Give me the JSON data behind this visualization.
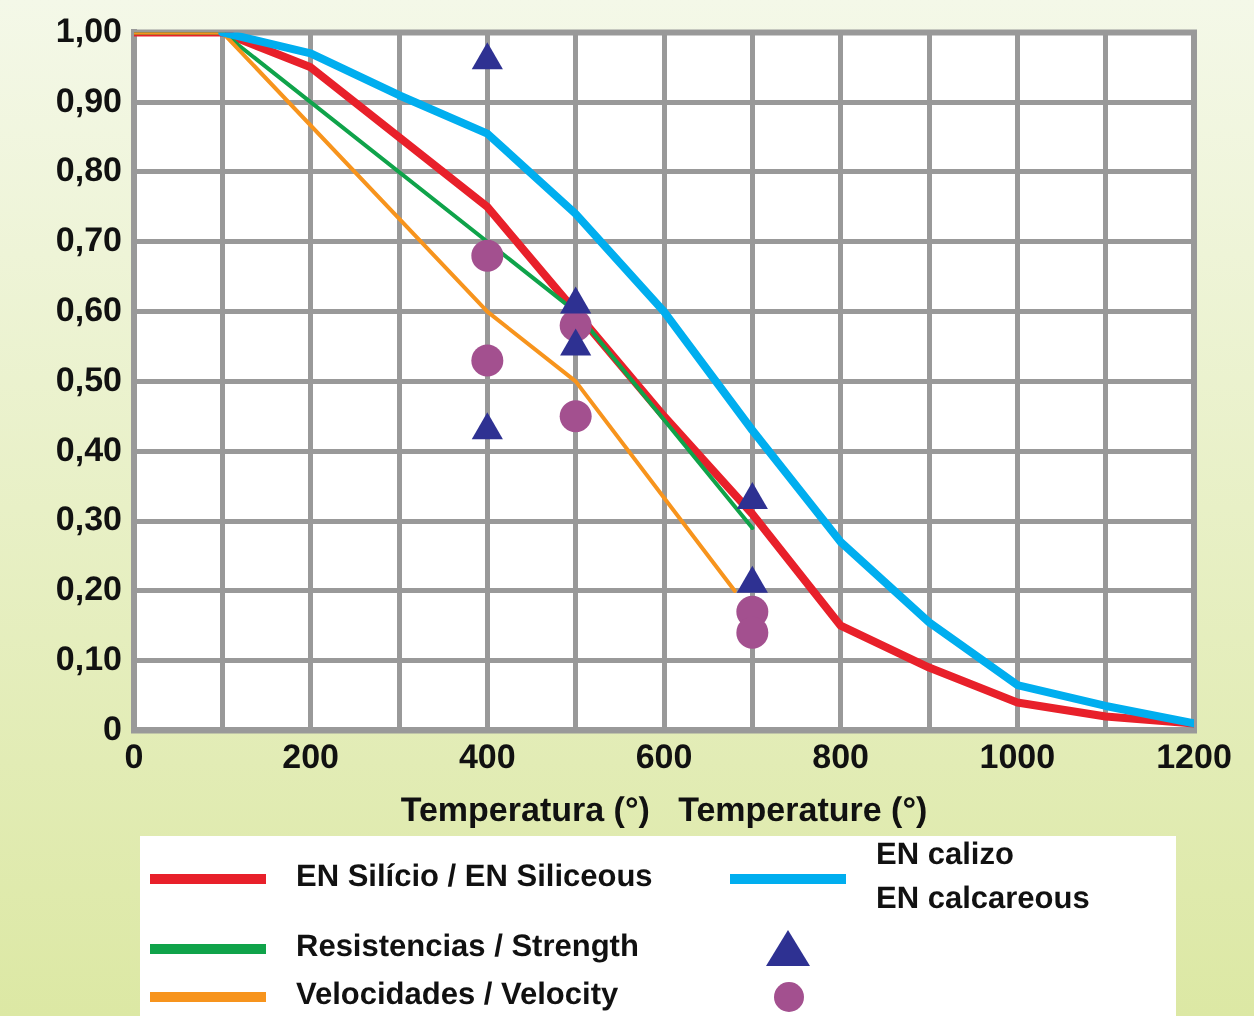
{
  "chart_data": {
    "type": "line",
    "xlabel": "Temperatura (°)   Temperature (°)",
    "xlim": [
      0,
      1200
    ],
    "ylim": [
      0,
      1
    ],
    "xticks": [
      0,
      {
        "value": 100,
        "label": null
      },
      200,
      {
        "value": 300,
        "label": null
      },
      400,
      {
        "value": 500,
        "label": null
      },
      600,
      {
        "value": 700,
        "label": null
      },
      800,
      {
        "value": 900,
        "label": null
      },
      1000,
      {
        "value": 1100,
        "label": null
      },
      1200
    ],
    "yticks": [
      {
        "value": 0,
        "label": "0"
      },
      {
        "value": 0.1,
        "label": "0,10"
      },
      {
        "value": 0.2,
        "label": "0,20"
      },
      {
        "value": 0.3,
        "label": "0,30"
      },
      {
        "value": 0.4,
        "label": "0,40"
      },
      {
        "value": 0.5,
        "label": "0,50"
      },
      {
        "value": 0.6,
        "label": "0,60"
      },
      {
        "value": 0.7,
        "label": "0,70"
      },
      {
        "value": 0.8,
        "label": "0,80"
      },
      {
        "value": 0.9,
        "label": "0,90"
      },
      {
        "value": 1,
        "label": "1,00"
      }
    ],
    "grid": true,
    "legend": "bottom",
    "series": [
      {
        "name": "EN Silício / EN Siliceous",
        "color": "#e8202a",
        "x": [
          0,
          100,
          200,
          300,
          400,
          500,
          600,
          700,
          800,
          900,
          1000,
          1100,
          1200
        ],
        "values": [
          1.0,
          1.0,
          0.95,
          0.85,
          0.75,
          0.6,
          0.45,
          0.31,
          0.15,
          0.09,
          0.04,
          0.02,
          0.01
        ]
      },
      {
        "name": "Resistencias / Strength",
        "color": "#0fa34a",
        "x": [
          0,
          100,
          400,
          500,
          700
        ],
        "values": [
          1.0,
          1.0,
          0.7,
          0.6,
          0.29
        ]
      },
      {
        "name": "Velocidades / Velocity",
        "color": "#f7941d",
        "x": [
          0,
          100,
          400,
          500,
          680
        ],
        "values": [
          1.0,
          1.0,
          0.6,
          0.5,
          0.2
        ]
      },
      {
        "name": "EN calizo\nEN calcareous",
        "color": "#00aeef",
        "x": [
          100,
          200,
          300,
          400,
          500,
          600,
          700,
          800,
          900,
          1000,
          1100,
          1200
        ],
        "values": [
          1.0,
          0.97,
          0.91,
          0.855,
          0.74,
          0.6,
          0.43,
          0.27,
          0.155,
          0.065,
          0.035,
          0.01
        ]
      },
      {
        "type": "scatter",
        "marker": "triangle",
        "color": "#2e3192",
        "x": [
          400,
          400,
          500,
          500,
          700,
          700
        ],
        "values": [
          0.96,
          0.43,
          0.61,
          0.55,
          0.33,
          0.21
        ]
      },
      {
        "type": "scatter",
        "marker": "circle",
        "color": "#a3508f",
        "x": [
          400,
          400,
          500,
          500,
          700,
          700
        ],
        "values": [
          0.68,
          0.53,
          0.58,
          0.45,
          0.17,
          0.14
        ]
      }
    ]
  }
}
